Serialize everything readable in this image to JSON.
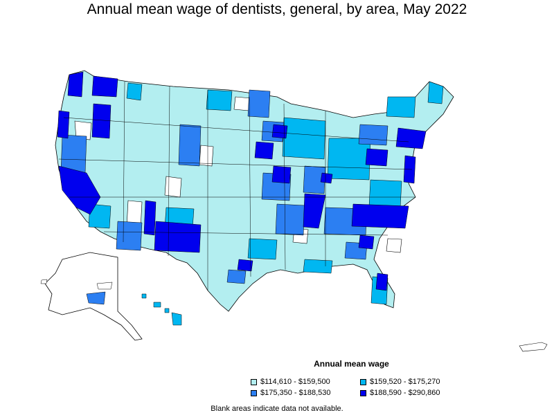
{
  "title": "Annual mean wage of dentists, general, by area, May 2022",
  "legend": {
    "title": "Annual mean wage",
    "items": [
      {
        "label": "$114,610 - $159,500",
        "color": "#b3eef0"
      },
      {
        "label": "$159,520 - $175,270",
        "color": "#00b7f1"
      },
      {
        "label": "$175,350 - $188,530",
        "color": "#2c7ff2"
      },
      {
        "label": "$188,590 - $290,860",
        "color": "#0000ee"
      }
    ]
  },
  "note": "Blank areas indicate data not available.",
  "colors": {
    "light": "#b3eef0",
    "medium": "#00b7f1",
    "mid_dark": "#2c7ff2",
    "dark": "#0000ee",
    "blank": "#ffffff",
    "border": "#000000"
  }
}
